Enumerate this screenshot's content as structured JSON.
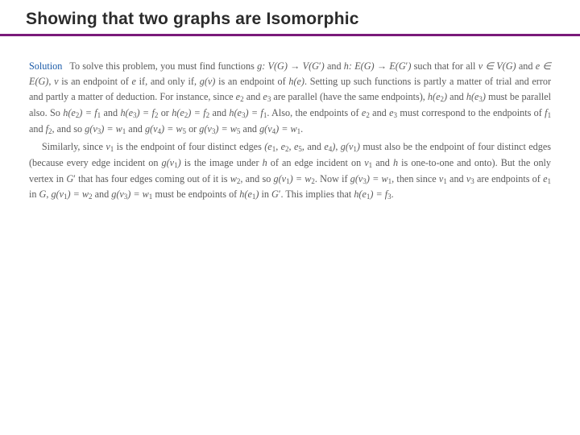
{
  "title": {
    "text": "Showing that two graphs are Isomorphic",
    "color": "#2b2b2b",
    "underline_color": "#7a1a7a",
    "fontsize": 21
  },
  "solution_label": {
    "text": "Solution",
    "color": "#1a5aa8"
  },
  "body": {
    "text_color": "#5a5a5a",
    "fontsize": 12.2,
    "line_height": 1.55,
    "background": "#ffffff"
  },
  "symbols": {
    "arrow": "→",
    "elem": "∈"
  },
  "text": {
    "p1_a": "To solve this problem, you must find functions ",
    "p1_b": " and ",
    "p1_c": " such that for all ",
    "p1_d": " and ",
    "p1_e": " is an endpoint of ",
    "p1_f": " if, and only if, ",
    "p1_g": " is an endpoint of ",
    "p1_h": ". Setting up such functions is partly a matter of trial and error and partly a matter of deduction. For instance, since ",
    "p1_i": " and ",
    "p1_j": " are parallel (have the same endpoints), ",
    "p1_k": " and ",
    "p1_l": " must be parallel also. So ",
    "p1_m": " and ",
    "p1_n": " or ",
    "p1_o": " and ",
    "p1_p": ". Also, the endpoints of ",
    "p1_q": " and ",
    "p1_r": " must correspond to the endpoints of ",
    "p1_s": " and ",
    "p1_t": ", and so ",
    "p1_u": " and ",
    "p1_v": " or ",
    "p1_w": " and ",
    "p1_x": ".",
    "p2_a": "Similarly, since ",
    "p2_b": " is the endpoint of four distinct edges ",
    "p2_c": ", and ",
    "p2_d": " must also be the endpoint of four distinct edges (because every edge incident on ",
    "p2_e": " is the image under ",
    "p2_f": " of an edge incident on ",
    "p2_g": " and ",
    "p2_h": " is one-to-one and onto). But the only vertex in ",
    "p2_i": " that has four edges coming out of it is ",
    "p2_j": ", and so ",
    "p2_k": ". Now if ",
    "p2_l": ", then since ",
    "p2_m": " and ",
    "p2_n": " are endpoints of ",
    "p2_o": " in ",
    "p2_p": " and ",
    "p2_q": " must be endpoints of ",
    "p2_r": " in ",
    "p2_s": ". This implies that ",
    "p2_t": "."
  },
  "math": {
    "g_def": "g: V(G) → V(G′)",
    "h_def": "h: E(G) → E(G′)",
    "v_in": "v ∈ V(G)",
    "e_in": "e ∈ E(G)",
    "v": "v",
    "e": "e",
    "gv": "g(v)",
    "he": "h(e)",
    "e2": "e₂",
    "e3": "e₃",
    "he2": "h(e₂)",
    "he3": "h(e₃)",
    "he2_f1": "h(e₂) = f₁",
    "he3_f2": "h(e₃) = f₂",
    "he2_f2": "h(e₂) = f₂",
    "he3_f1": "h(e₃) = f₁",
    "f1": "f₁",
    "f2": "f₂",
    "gv3_w1": "g(v₃) = w₁",
    "gv4_w5": "g(v₄) = w₅",
    "gv3_w5": "g(v₃) = w₅",
    "gv4_w1": "g(v₄) = w₁",
    "v1": "v₁",
    "edges4": "(e₁, e₂, e₅, and e₄)",
    "gv1": "g(v₁)",
    "h": "h",
    "Gp": "G′",
    "w2": "w₂",
    "gv1_w2": "g(v₁) = w₂",
    "v3": "v₃",
    "e1": "e₁",
    "G": "G",
    "gv3_w1b": "g(v₃) = w₁",
    "he1": "h(e₁)",
    "he1_f3": "h(e₁) = f₃",
    "comma_v": ", v"
  }
}
